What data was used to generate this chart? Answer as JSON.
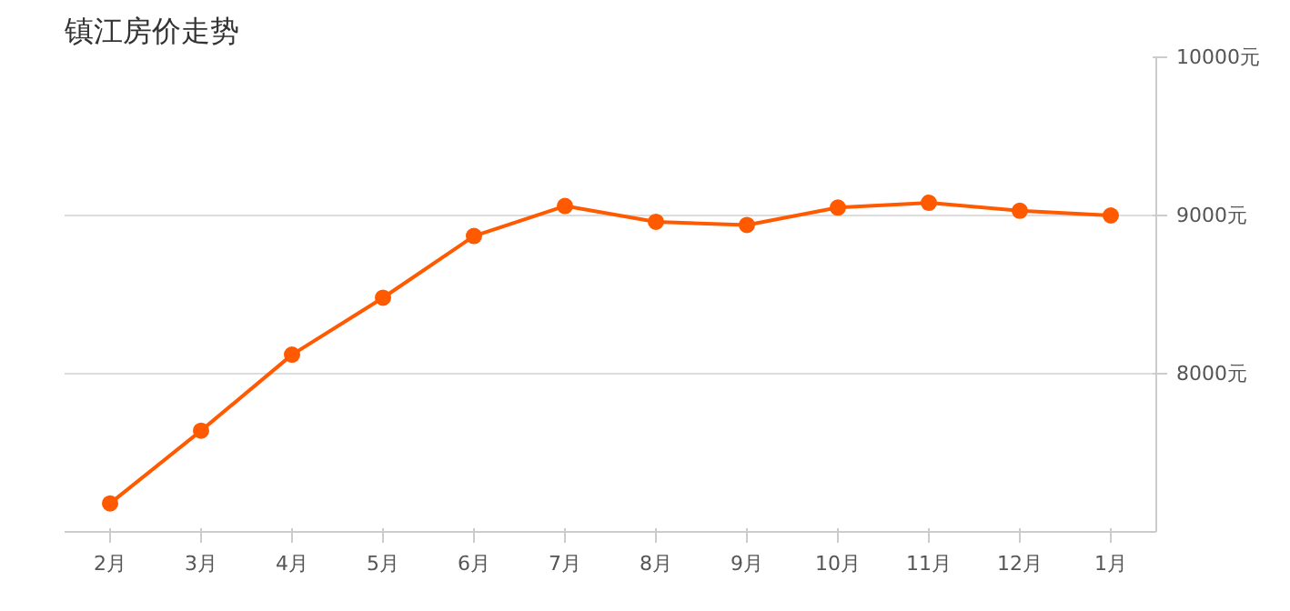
{
  "chart_data": {
    "type": "line",
    "title": "镇江房价走势",
    "categories": [
      "2月",
      "3月",
      "4月",
      "5月",
      "6月",
      "7月",
      "8月",
      "9月",
      "10月",
      "11月",
      "12月",
      "1月"
    ],
    "series": [
      {
        "color": "#ff5a00",
        "values": [
          7180,
          7640,
          8120,
          8480,
          8870,
          9060,
          8960,
          8940,
          9050,
          9080,
          9030,
          9000
        ]
      }
    ],
    "ylim": [
      7000,
      10000
    ],
    "yticks": [
      {
        "value": 8000,
        "label": "8000元"
      },
      {
        "value": 9000,
        "label": "9000元"
      },
      {
        "value": 10000,
        "label": "10000元"
      }
    ],
    "grid": "y",
    "marker": "circle",
    "line_style": "solid"
  }
}
